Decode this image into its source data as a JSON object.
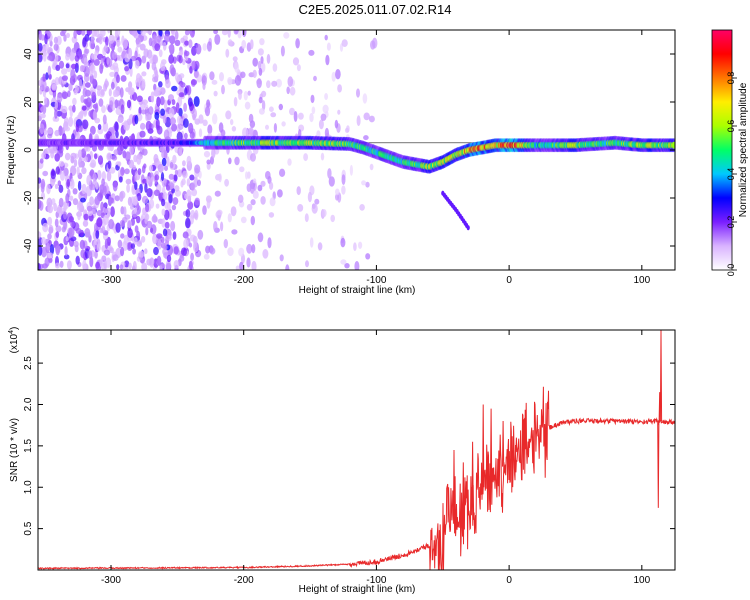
{
  "title": "C2E5.2025.011.07.02.R14",
  "chart_data": [
    {
      "type": "heatmap",
      "xlabel": "Height of straight line (km)",
      "ylabel": "Frequency (Hz)",
      "xlim": [
        -355,
        125
      ],
      "ylim": [
        -50,
        50
      ],
      "x_ticks": [
        -300,
        -200,
        -100,
        0,
        100
      ],
      "y_ticks": [
        -40,
        -20,
        0,
        20,
        40
      ],
      "colorbar": {
        "label": "Normalized spectral amplitude",
        "range": [
          0.0,
          1.0
        ],
        "ticks": [
          "0.0",
          "0.2",
          "0.4",
          "0.6",
          "0.8"
        ],
        "colors": [
          "#ffffff",
          "#d9b3ff",
          "#7a1fff",
          "#0000ff",
          "#00c8ff",
          "#00ff66",
          "#aaff00",
          "#ffee00",
          "#ff7700",
          "#ff0000",
          "#ff0066"
        ]
      },
      "ridge": {
        "x": [
          -355,
          -300,
          -250,
          -230,
          -200,
          -150,
          -120,
          -110,
          -100,
          -90,
          -80,
          -70,
          -60,
          -50,
          -40,
          -30,
          -20,
          -10,
          0,
          20,
          50,
          80,
          100,
          125
        ],
        "frequency": [
          3,
          3,
          3,
          3,
          3,
          3,
          2.5,
          1,
          -1,
          -3,
          -5,
          -6,
          -7,
          -5,
          -2,
          0,
          1,
          2,
          2,
          2,
          2,
          3,
          2,
          2
        ],
        "amplitude": [
          0.2,
          0.22,
          0.25,
          0.45,
          0.55,
          0.6,
          0.55,
          0.5,
          0.5,
          0.5,
          0.5,
          0.55,
          0.6,
          0.6,
          0.65,
          0.75,
          0.8,
          0.7,
          0.95,
          0.45,
          0.6,
          0.5,
          0.6,
          0.55
        ]
      },
      "tail": {
        "x": [
          -50,
          -40,
          -30
        ],
        "frequency": [
          -18,
          -25,
          -33
        ]
      },
      "noise": {
        "x_range": [
          -355,
          -100
        ],
        "dense_until": -235
      }
    },
    {
      "type": "line",
      "xlabel": "Height of straight line (km)",
      "ylabel": "SNR (10 * v/v)",
      "y_multiplier": "(x10",
      "y_multiplier_exp": "4",
      "series_color": "#e8292a",
      "xlim": [
        -355,
        125
      ],
      "ylim": [
        0,
        2.9
      ],
      "x_ticks": [
        -300,
        -200,
        -100,
        0,
        100
      ],
      "y_ticks": [
        0.5,
        1.0,
        1.5,
        2.0,
        2.5
      ],
      "envelope": {
        "x": [
          -355,
          -200,
          -150,
          -120,
          -100,
          -80,
          -60,
          -50,
          -40,
          -30,
          -20,
          -10,
          0,
          10,
          20,
          30,
          40,
          50,
          60,
          80,
          100,
          110,
          125
        ],
        "y": [
          0.02,
          0.03,
          0.05,
          0.07,
          0.1,
          0.18,
          0.3,
          0.4,
          0.6,
          0.8,
          1.0,
          1.15,
          1.35,
          1.5,
          1.62,
          1.72,
          1.78,
          1.8,
          1.8,
          1.8,
          1.79,
          1.8,
          1.78
        ]
      },
      "spikes": [
        {
          "x": -42,
          "y": 1.45
        },
        {
          "x": -35,
          "y": 1.3
        },
        {
          "x": -28,
          "y": 1.55
        },
        {
          "x": -20,
          "y": 2.0
        },
        {
          "x": -14,
          "y": 1.95
        },
        {
          "x": -5,
          "y": 1.8
        },
        {
          "x": 5,
          "y": 1.6
        },
        {
          "x": 112,
          "y": 0.75
        },
        {
          "x": 113,
          "y": 2.15
        },
        {
          "x": 114,
          "y": 2.9
        }
      ]
    }
  ]
}
